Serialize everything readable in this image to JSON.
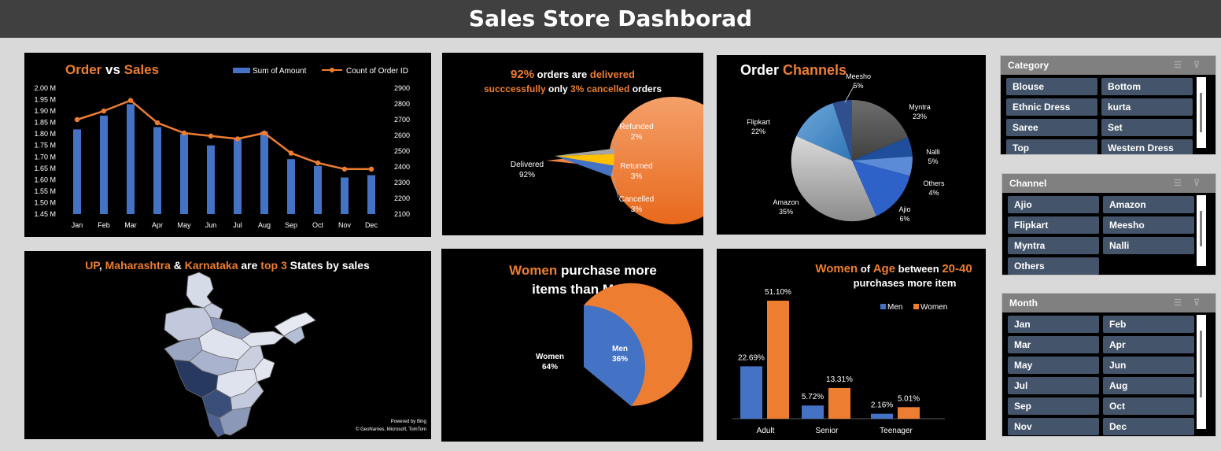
{
  "title": "Sales Store Dashborad",
  "sales_chart": {
    "title_a": "Order",
    "title_b": " vs ",
    "title_c": "Sales",
    "legend_amount": "Sum of Amount",
    "legend_count": "Count of Order ID",
    "months": [
      "Jan",
      "Feb",
      "Mar",
      "Apr",
      "May",
      "Jun",
      "Jul",
      "Aug",
      "Sep",
      "Oct",
      "Nov",
      "Dec"
    ],
    "left_ticks": [
      "2.00 M",
      "1.95 M",
      "1.90 M",
      "1.85 M",
      "1.80 M",
      "1.75 M",
      "1.70 M",
      "1.65 M",
      "1.60 M",
      "1.55 M",
      "1.50 M",
      "1.45 M"
    ],
    "right_ticks": [
      "2900",
      "2800",
      "2700",
      "2600",
      "2500",
      "2400",
      "2300",
      "2200",
      "2100"
    ],
    "bar_color": "#4472c4",
    "line_color": "#ed7d31"
  },
  "delivery_chart": {
    "t1": "92%",
    "t2": " orders are ",
    "t3": "delivered",
    "t4": "succcessfully",
    "t5": " only ",
    "t6": "3% cancelled",
    "t7": " orders",
    "delivered_name": "Delivered",
    "delivered_pct": "92%",
    "refunded_name": "Refunded",
    "refunded_pct": "2%",
    "returned_name": "Returned",
    "returned_pct": "3%",
    "cancelled_name": "Cancelled",
    "cancelled_pct": "3%"
  },
  "channels_chart": {
    "title_a": "Order",
    "title_b": "Channels",
    "labels": [
      {
        "name": "Meesho",
        "pct": "5%"
      },
      {
        "name": "Myntra",
        "pct": "23%"
      },
      {
        "name": "Flipkart",
        "pct": "22%"
      },
      {
        "name": "Nalli",
        "pct": "5%"
      },
      {
        "name": "Others",
        "pct": "4%"
      },
      {
        "name": "Amazon",
        "pct": "35%"
      },
      {
        "name": "Ajio",
        "pct": "6%"
      }
    ]
  },
  "states_map": {
    "t1": "UP",
    "t2": ", ",
    "t3": "Maharashtra",
    "t4": " & ",
    "t5": "Karnataka",
    "t6": " are ",
    "t7": "top 3",
    "t8": " States by sales",
    "credit1": "Powered by Bing",
    "credit2": "© GeoNames, Microsoft, TomTom"
  },
  "gender_chart": {
    "title_a": "Women",
    "title_b": " purchase more",
    "title_c": "items than Man",
    "women_name": "Women",
    "women_pct": "64%",
    "men_name": "Men",
    "men_pct": "36%"
  },
  "age_chart": {
    "t1": "Women",
    "t2": " of ",
    "t3": "Age",
    "t4": " between ",
    "t5": "20-40",
    "t6": "purchases more item",
    "legend_men": "Men",
    "legend_women": "Women",
    "categories": [
      "Adult",
      "Senior",
      "Teenager"
    ],
    "men_labels": [
      "22.69%",
      "5.72%",
      "2.16%"
    ],
    "women_labels": [
      "51.10%",
      "13.31%",
      "5.01%"
    ]
  },
  "slicers": {
    "category": {
      "title": "Category",
      "items": [
        "Blouse",
        "Bottom",
        "Ethnic Dress",
        "kurta",
        "Saree",
        "Set",
        "Top",
        "Western Dress"
      ]
    },
    "channel": {
      "title": "Channel",
      "items": [
        "Ajio",
        "Amazon",
        "Flipkart",
        "Meesho",
        "Myntra",
        "Nalli",
        "Others"
      ]
    },
    "month": {
      "title": "Month",
      "items": [
        "Jan",
        "Feb",
        "Mar",
        "Apr",
        "May",
        "Jun",
        "Jul",
        "Aug",
        "Sep",
        "Oct",
        "Nov",
        "Dec"
      ]
    }
  },
  "chart_data": [
    {
      "type": "bar",
      "title": "Order vs Sales",
      "categories": [
        "Jan",
        "Feb",
        "Mar",
        "Apr",
        "May",
        "Jun",
        "Jul",
        "Aug",
        "Sep",
        "Oct",
        "Nov",
        "Dec"
      ],
      "series": [
        {
          "name": "Sum of Amount",
          "axis": "left",
          "values": [
            1.82,
            1.88,
            1.93,
            1.83,
            1.8,
            1.75,
            1.78,
            1.81,
            1.69,
            1.66,
            1.61,
            1.62
          ]
        },
        {
          "name": "Count of Order ID",
          "axis": "right",
          "type": "line",
          "values": [
            2700,
            2755,
            2822,
            2680,
            2615,
            2596,
            2578,
            2615,
            2487,
            2425,
            2386,
            2386
          ]
        }
      ],
      "ylim": [
        1.45,
        2.0
      ],
      "y2lim": [
        2100,
        2900
      ],
      "legend": "top-right"
    },
    {
      "type": "pie",
      "title": "92% orders are delivered succcessfully only 3% cancelled orders",
      "labels": [
        "Delivered",
        "Refunded",
        "Returned",
        "Cancelled"
      ],
      "values": [
        92,
        2,
        3,
        3
      ]
    },
    {
      "type": "pie",
      "title": "Order Channels",
      "labels": [
        "Amazon",
        "Myntra",
        "Flipkart",
        "Ajio",
        "Meesho",
        "Nalli",
        "Others"
      ],
      "values": [
        35,
        23,
        22,
        6,
        5,
        5,
        4
      ]
    },
    {
      "type": "pie",
      "title": "Women purchase more items than Man",
      "labels": [
        "Women",
        "Men"
      ],
      "values": [
        64,
        36
      ]
    },
    {
      "type": "bar",
      "title": "Women of Age between 20-40 purchases more item",
      "categories": [
        "Adult",
        "Senior",
        "Teenager"
      ],
      "series": [
        {
          "name": "Men",
          "values": [
            22.69,
            5.72,
            2.16
          ]
        },
        {
          "name": "Women",
          "values": [
            51.1,
            13.31,
            5.01
          ]
        }
      ],
      "legend": "top-right"
    }
  ]
}
